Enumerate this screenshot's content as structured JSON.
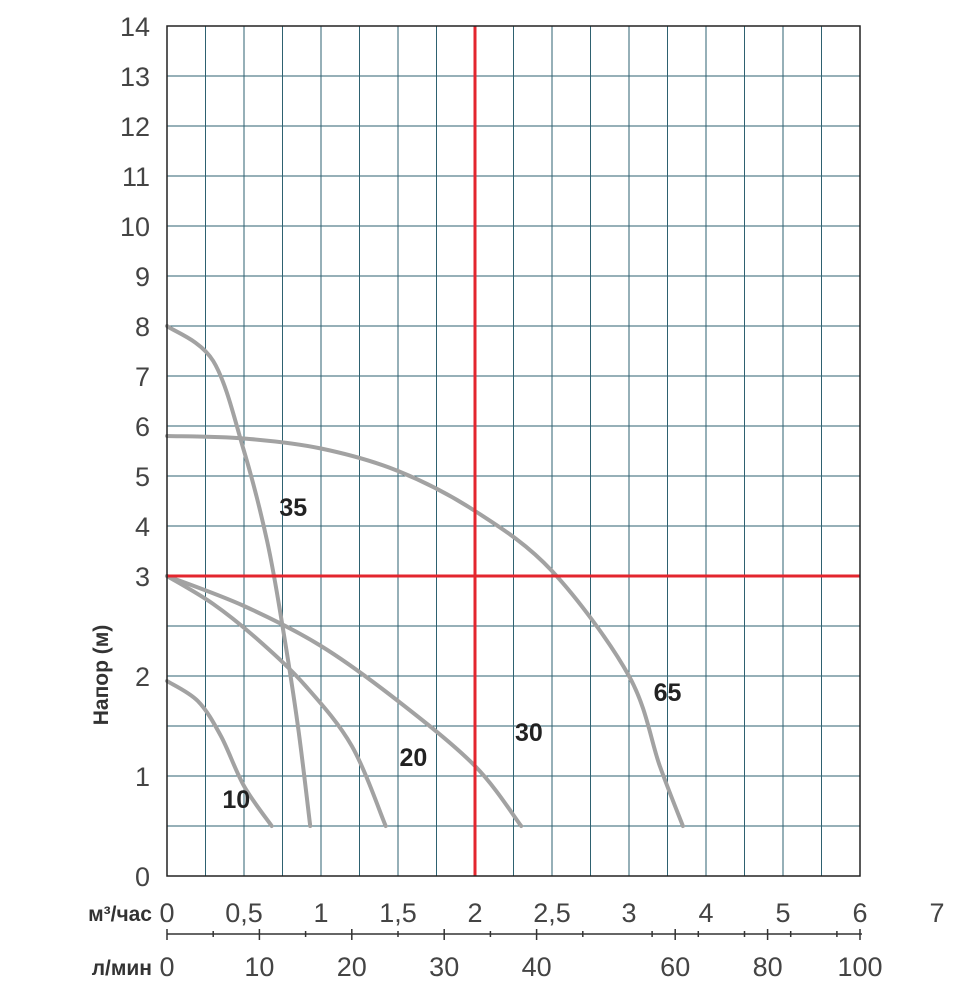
{
  "chart_data": {
    "type": "line",
    "ylabel": "Напор (м)",
    "y_ticks": [
      "0",
      "1",
      "2",
      "3",
      "4",
      "5",
      "6",
      "7",
      "8",
      "9",
      "10",
      "11",
      "12",
      "13",
      "14"
    ],
    "x1_label": "м³/час",
    "x1_ticks": [
      "0",
      "0,5",
      "1",
      "1,5",
      "2",
      "2,5",
      "3",
      "4",
      "5",
      "6",
      "7"
    ],
    "x2_label": "л/мин",
    "x2_ticks": [
      "0",
      "10",
      "20",
      "30",
      "40",
      "60",
      "80",
      "100"
    ],
    "grid": true,
    "note": "Non-linear axes: x (m3/h) segments 0-2.5 at 0.5 per cell, then 1 per cell up to 7; y (m) 0-3 at 1 per cell (1 unit = 2 cells), above 3 at 1 per cell.",
    "series": [
      {
        "name": "10",
        "color": "#a2a2a2",
        "points": [
          [
            0,
            1.95
          ],
          [
            0.2,
            1.75
          ],
          [
            0.35,
            1.4
          ],
          [
            0.5,
            0.9
          ],
          [
            0.68,
            0.5
          ]
        ]
      },
      {
        "name": "20",
        "color": "#a2a2a2",
        "points": [
          [
            0,
            3.0
          ],
          [
            0.3,
            2.72
          ],
          [
            0.6,
            2.35
          ],
          [
            0.9,
            1.9
          ],
          [
            1.2,
            1.3
          ],
          [
            1.42,
            0.5
          ]
        ]
      },
      {
        "name": "30",
        "color": "#a2a2a2",
        "points": [
          [
            0,
            3.0
          ],
          [
            0.5,
            2.7
          ],
          [
            1.0,
            2.3
          ],
          [
            1.5,
            1.75
          ],
          [
            2.0,
            1.1
          ],
          [
            2.3,
            0.5
          ]
        ]
      },
      {
        "name": "35",
        "color": "#a2a2a2",
        "points": [
          [
            0,
            8.0
          ],
          [
            0.3,
            7.3
          ],
          [
            0.5,
            5.5
          ],
          [
            0.65,
            3.7
          ],
          [
            0.75,
            2.5
          ],
          [
            0.85,
            1.5
          ],
          [
            0.93,
            0.5
          ]
        ]
      },
      {
        "name": "65",
        "color": "#a2a2a2",
        "points": [
          [
            0,
            5.8
          ],
          [
            0.5,
            5.75
          ],
          [
            1.0,
            5.55
          ],
          [
            1.5,
            5.1
          ],
          [
            2.0,
            4.3
          ],
          [
            2.5,
            3.1
          ],
          [
            3.0,
            2.0
          ],
          [
            3.4,
            1.1
          ],
          [
            3.7,
            0.5
          ]
        ]
      }
    ],
    "reference_lines": [
      {
        "axis": "x",
        "value": 2,
        "color": "#e3262e"
      },
      {
        "axis": "y",
        "value": 3,
        "color": "#e3262e"
      }
    ]
  }
}
